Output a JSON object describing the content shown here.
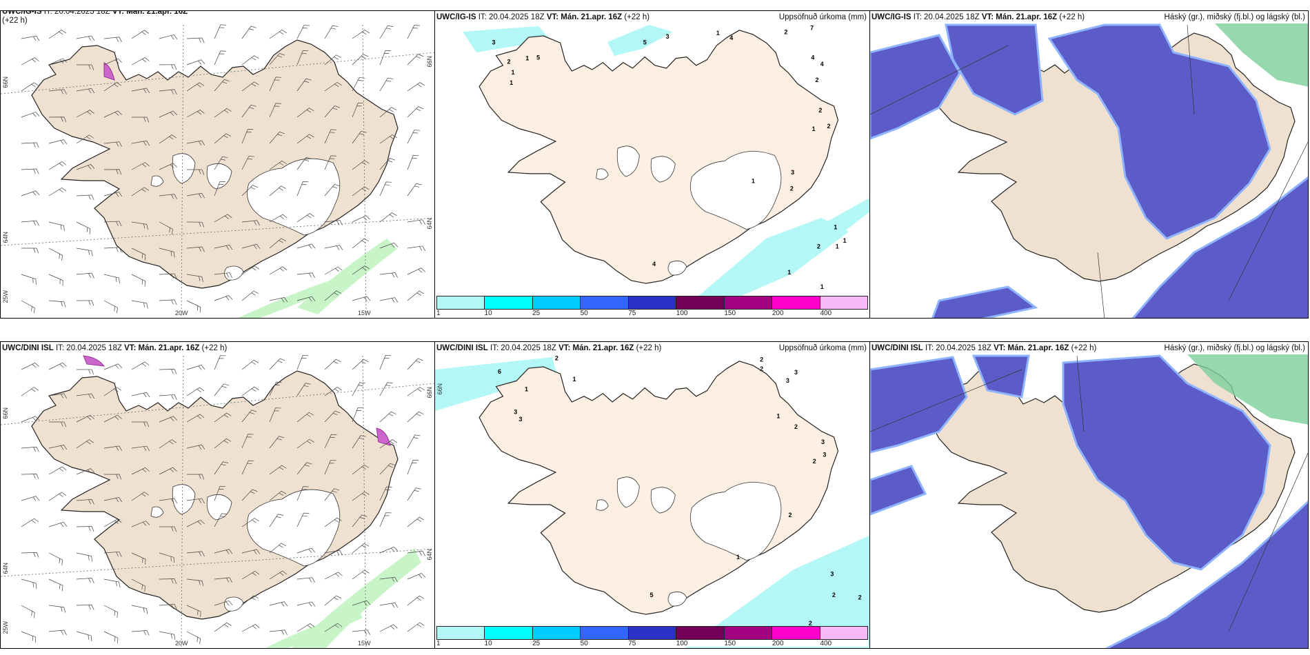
{
  "panels": {
    "top_left": {
      "model": "UWC/IG-IS",
      "it_label": "IT:",
      "it_value": "20.04.2025 18Z",
      "vt_label": "VT:",
      "vt_value": "Mán. 21.apr. 16Z",
      "lead": "(+22 h)"
    },
    "top_middle": {
      "model": "UWC/IG-IS",
      "it_label": "IT:",
      "it_value": "20.04.2025 18Z",
      "vt_label": "VT:",
      "vt_value": "Mán. 21.apr. 16Z",
      "lead": "(+22 h)",
      "title": "Uppsöfnuð úrkoma (mm)",
      "precip_labels": [
        "3",
        "5",
        "3",
        "1",
        "4",
        "2",
        "7",
        "4",
        "4",
        "2",
        "2",
        "1",
        "2",
        "1",
        "3",
        "2",
        "1",
        "2",
        "1",
        "1",
        "1",
        "1",
        "4",
        "2",
        "1",
        "1",
        "1",
        "5"
      ]
    },
    "top_right": {
      "model": "UWC/IG-IS",
      "it_label": "IT:",
      "it_value": "20.04.2025 18Z",
      "vt_label": "VT:",
      "vt_value": "Mán. 21.apr. 16Z",
      "lead": "(+22 h)",
      "title": "Háský (gr.), miðský (fj.bl.) og lágský (bl.)"
    },
    "bottom_left": {
      "model": "UWC/DINI ISL",
      "it_label": "IT:",
      "it_value": "20.04.2025 18Z",
      "vt_label": "VT:",
      "vt_value": "Mán. 21.apr. 16Z",
      "lead": "(+22 h)"
    },
    "bottom_middle": {
      "model": "UWC/DINI ISL",
      "it_label": "IT:",
      "it_value": "20.04.2025 18Z",
      "vt_label": "VT:",
      "vt_value": "Mán. 21.apr. 16Z",
      "lead": "(+22 h)",
      "title": "Uppsöfnuð úrkoma (mm)",
      "precip_labels": [
        "6",
        "2",
        "1",
        "1",
        "3",
        "3",
        "2",
        "2",
        "3",
        "3",
        "1",
        "2",
        "3",
        "3",
        "2",
        "2",
        "1",
        "3",
        "2",
        "2",
        "2",
        "5"
      ]
    },
    "bottom_right": {
      "model": "UWC/DINI ISL",
      "it_label": "IT:",
      "it_value": "20.04.2025 18Z",
      "vt_label": "VT:",
      "vt_value": "Mán. 21.apr. 16Z",
      "lead": "(+22 h)",
      "title": "Háský (gr.), miðský (fj.bl.) og lágský (bl.)"
    }
  },
  "axis_labels": {
    "lat_66": "66N",
    "lat_64": "64N",
    "lon_25": "25W",
    "lon_20": "20W",
    "lon_15": "15W"
  },
  "colorbar": {
    "labels": [
      "1",
      "10",
      "25",
      "50",
      "75",
      "100",
      "150",
      "200",
      "400"
    ],
    "colors": [
      "#b3f7f7",
      "#00ffff",
      "#00ccff",
      "#3366ff",
      "#2a33c6",
      "#730057",
      "#a3007f",
      "#ff00cc",
      "#f7b8f7"
    ]
  },
  "colors": {
    "land": "#f0e0cf",
    "land_mid": "#fdf0e3",
    "cloud_low": "#5c5cc8",
    "cloud_edge": "#8fb4ff",
    "high_cloud": "#3cb371",
    "wind_precip": "#c8f5c8"
  }
}
